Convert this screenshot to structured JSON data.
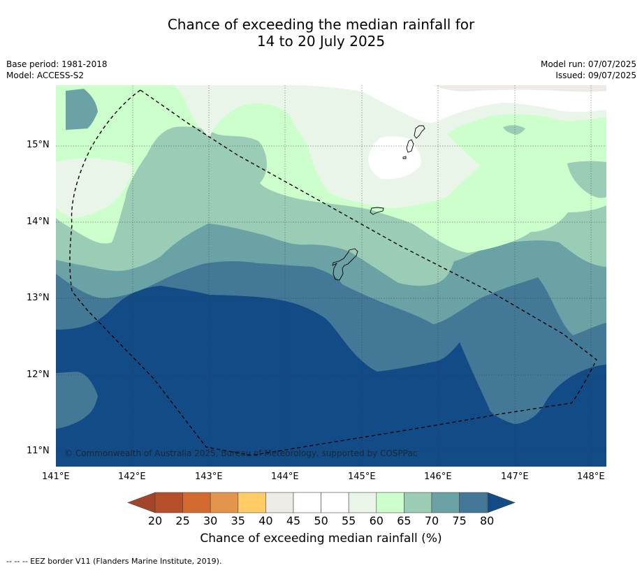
{
  "title": {
    "line1": "Chance of exceeding the median rainfall for",
    "line2": "14 to 20 July 2025"
  },
  "meta_left": {
    "base_period": "Base period: 1981-2018",
    "model": "Model: ACCESS-S2"
  },
  "meta_right": {
    "model_run": "Model run: 07/07/2025",
    "issued": "Issued: 09/07/2025"
  },
  "copyright": "© Commonwealth of Australia 2025, Bureau of Meteorology, supported by COSPPac",
  "axes": {
    "lat_labels": [
      "15°N",
      "14°N",
      "13°N",
      "12°N",
      "11°N"
    ],
    "lon_labels": [
      "141°E",
      "142°E",
      "143°E",
      "144°E",
      "145°E",
      "146°E",
      "147°E",
      "148°E"
    ]
  },
  "colorbar": {
    "ticks": [
      "20",
      "25",
      "30",
      "35",
      "40",
      "45",
      "50",
      "55",
      "60",
      "65",
      "70",
      "75",
      "80"
    ],
    "colors": [
      "#b5502a",
      "#d2692f",
      "#e3964b",
      "#ffcc66",
      "#eeebe6",
      "#ffffff",
      "#ffffff",
      "#eaf5ea",
      "#ccffcc",
      "#9bcdb6",
      "#6ba2a5",
      "#437996"
    ],
    "under_color": "#a3452a",
    "over_color": "#124b86",
    "title": "Chance of exceeding median rainfall (%)"
  },
  "footnote": "--  --  -- EEZ border V11 (Flanders Marine Institute, 2019)."
}
